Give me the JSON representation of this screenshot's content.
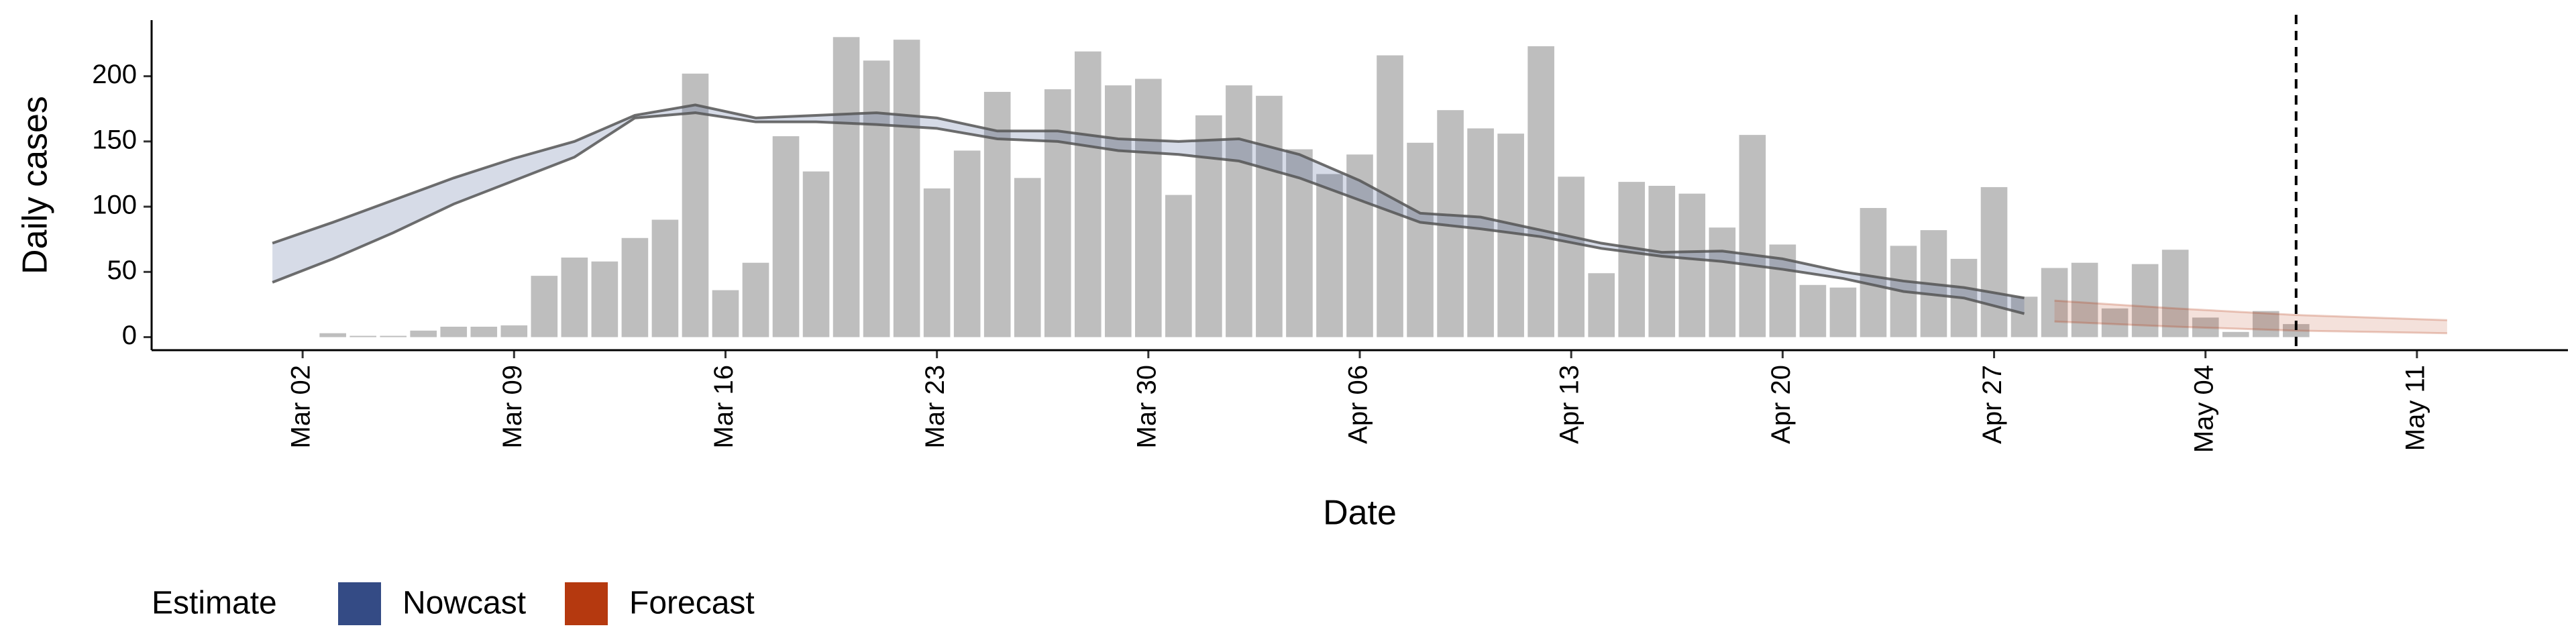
{
  "chart_data": {
    "type": "bar",
    "x_label": "Date",
    "y_label": "Daily cases",
    "color": "#bebebe",
    "categories": [
      "Mar 03",
      "Mar 04",
      "Mar 05",
      "Mar 06",
      "Mar 07",
      "Mar 08",
      "Mar 09",
      "Mar 10",
      "Mar 11",
      "Mar 12",
      "Mar 13",
      "Mar 14",
      "Mar 15",
      "Mar 16",
      "Mar 17",
      "Mar 18",
      "Mar 19",
      "Mar 20",
      "Mar 21",
      "Mar 22",
      "Mar 23",
      "Mar 24",
      "Mar 25",
      "Mar 26",
      "Mar 27",
      "Mar 28",
      "Mar 29",
      "Mar 30",
      "Mar 31",
      "Apr 01",
      "Apr 02",
      "Apr 03",
      "Apr 04",
      "Apr 05",
      "Apr 06",
      "Apr 07",
      "Apr 08",
      "Apr 09",
      "Apr 10",
      "Apr 11",
      "Apr 12",
      "Apr 13",
      "Apr 14",
      "Apr 15",
      "Apr 16",
      "Apr 17",
      "Apr 18",
      "Apr 19",
      "Apr 20",
      "Apr 21",
      "Apr 22",
      "Apr 23",
      "Apr 24",
      "Apr 25",
      "Apr 26",
      "Apr 27",
      "Apr 28",
      "Apr 29",
      "Apr 30",
      "May 01",
      "May 02",
      "May 03",
      "May 04",
      "May 05",
      "May 06",
      "May 07"
    ],
    "values": [
      3,
      1,
      1,
      5,
      8,
      8,
      9,
      47,
      61,
      58,
      76,
      90,
      202,
      36,
      57,
      154,
      127,
      230,
      212,
      228,
      114,
      143,
      188,
      122,
      190,
      219,
      193,
      198,
      109,
      170,
      193,
      185,
      144,
      125,
      140,
      216,
      149,
      174,
      160,
      156,
      223,
      123,
      49,
      119,
      116,
      110,
      84,
      155,
      71,
      40,
      38,
      99,
      70,
      82,
      60,
      115,
      31,
      53,
      57,
      22,
      56,
      67,
      15,
      4,
      20,
      10
    ],
    "xlim": [
      "Feb 26",
      "May 16"
    ],
    "xticks": [
      "Mar 02",
      "Mar 09",
      "Mar 16",
      "Mar 23",
      "Mar 30",
      "Apr 06",
      "Apr 13",
      "Apr 20",
      "Apr 27",
      "May 04",
      "May 11"
    ],
    "ylim": [
      -10,
      243
    ],
    "yticks": [
      0,
      50,
      100,
      150,
      200
    ],
    "vline": "May 07",
    "legend_title": "Estimate",
    "bands": [
      {
        "name": "Nowcast",
        "color": "#344b85",
        "x": [
          "Mar 01",
          "Mar 03",
          "Mar 05",
          "Mar 07",
          "Mar 09",
          "Mar 11",
          "Mar 13",
          "Mar 15",
          "Mar 17",
          "Mar 19",
          "Mar 21",
          "Mar 23",
          "Mar 25",
          "Mar 27",
          "Mar 29",
          "Mar 31",
          "Apr 02",
          "Apr 04",
          "Apr 06",
          "Apr 08",
          "Apr 10",
          "Apr 12",
          "Apr 14",
          "Apr 16",
          "Apr 18",
          "Apr 20",
          "Apr 22",
          "Apr 24",
          "Apr 26",
          "Apr 28"
        ],
        "lower": [
          42,
          60,
          80,
          102,
          120,
          138,
          168,
          172,
          165,
          165,
          163,
          160,
          152,
          150,
          143,
          140,
          135,
          122,
          105,
          88,
          83,
          77,
          68,
          62,
          58,
          52,
          45,
          35,
          30,
          18
        ],
        "upper": [
          72,
          88,
          105,
          122,
          137,
          150,
          170,
          178,
          168,
          170,
          172,
          168,
          158,
          158,
          152,
          150,
          152,
          140,
          120,
          95,
          92,
          82,
          72,
          65,
          66,
          60,
          50,
          43,
          38,
          30
        ]
      },
      {
        "name": "Forecast",
        "color": "#b5390f",
        "x": [
          "Apr 29",
          "May 03",
          "May 07",
          "May 12"
        ],
        "lower": [
          12,
          8,
          5,
          3
        ],
        "upper": [
          28,
          22,
          17,
          13
        ]
      }
    ]
  }
}
